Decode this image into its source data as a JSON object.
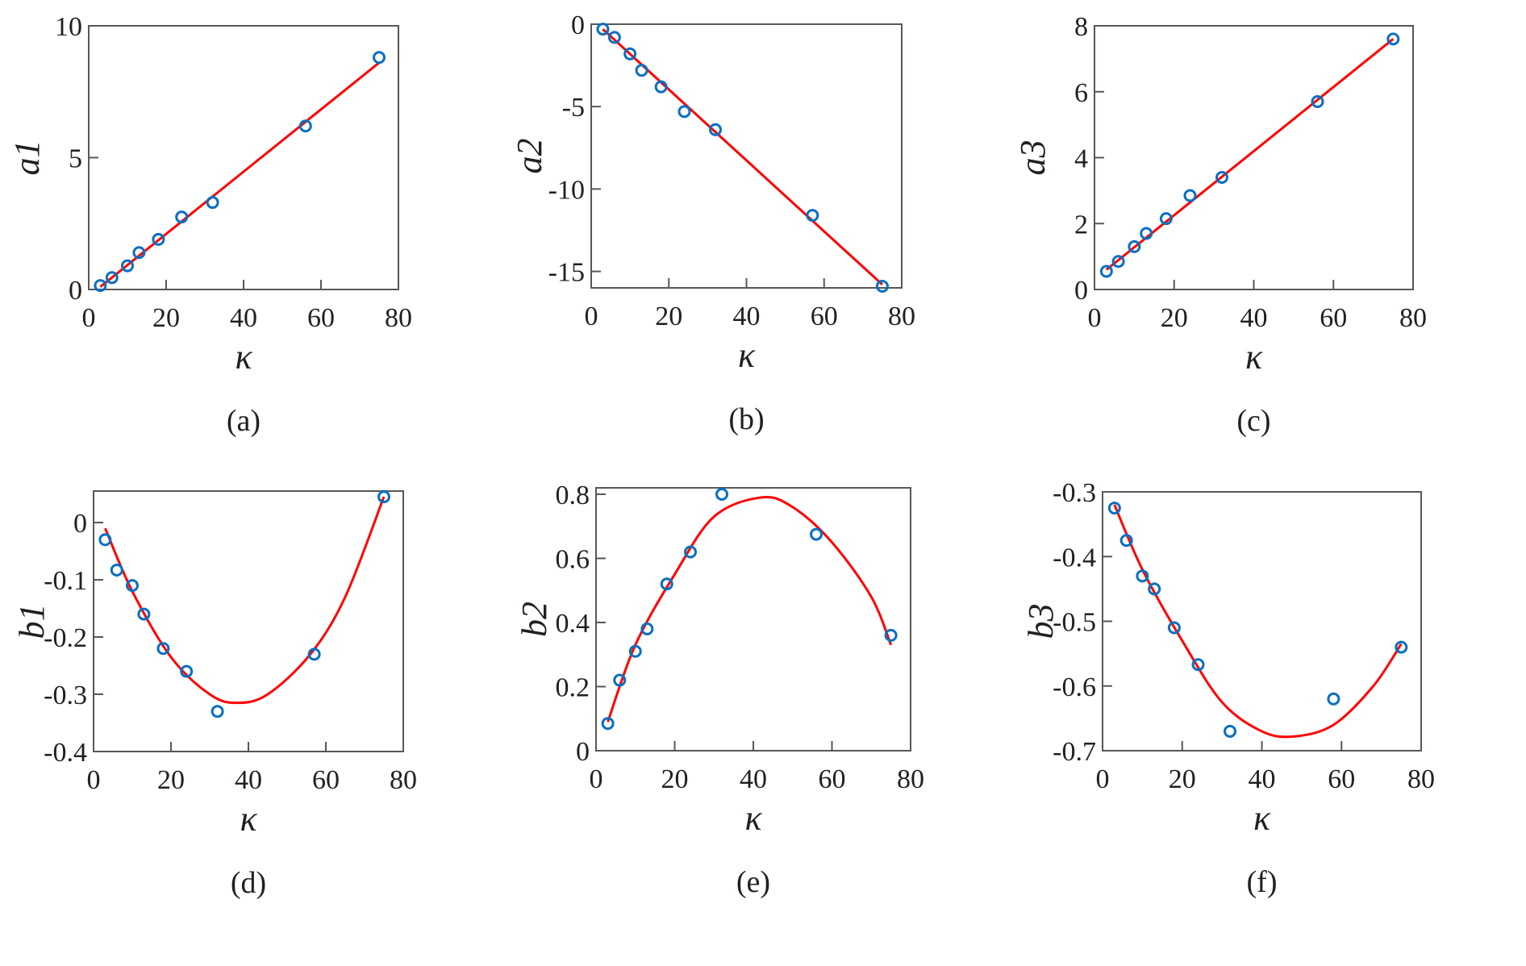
{
  "colors": {
    "points": "#0a6fc2",
    "fit": "#ff0000",
    "frame": "#5a5656"
  },
  "chart_data": [
    {
      "type": "scatter",
      "panel": "(a)",
      "xlabel": "κ",
      "ylabel": "a1",
      "xlim": [
        0,
        80
      ],
      "ylim": [
        0,
        10
      ],
      "xticks": [
        0,
        20,
        40,
        60,
        80
      ],
      "yticks": [
        0,
        5,
        10
      ],
      "x": [
        3,
        6,
        10,
        13,
        18,
        24,
        32,
        56,
        75
      ],
      "y": [
        0.15,
        0.45,
        0.9,
        1.4,
        1.9,
        2.75,
        3.3,
        6.2,
        8.8
      ],
      "fit": {
        "x": [
          3,
          75
        ],
        "y": [
          0.1,
          8.6
        ]
      }
    },
    {
      "type": "scatter",
      "panel": "(b)",
      "xlabel": "κ",
      "ylabel": "a2",
      "xlim": [
        0,
        80
      ],
      "ylim": [
        -16,
        0
      ],
      "xticks": [
        0,
        20,
        40,
        60,
        80
      ],
      "yticks": [
        0,
        -5,
        -10,
        -15
      ],
      "x": [
        3,
        6,
        10,
        13,
        18,
        24,
        32,
        57,
        75
      ],
      "y": [
        -0.3,
        -0.8,
        -1.8,
        -2.8,
        -3.8,
        -5.3,
        -6.4,
        -11.6,
        -15.9
      ],
      "fit": {
        "x": [
          3,
          75
        ],
        "y": [
          -0.3,
          -15.8
        ]
      }
    },
    {
      "type": "scatter",
      "panel": "(c)",
      "xlabel": "κ",
      "ylabel": "a3",
      "xlim": [
        0,
        80
      ],
      "ylim": [
        0,
        8
      ],
      "xticks": [
        0,
        20,
        40,
        60,
        80
      ],
      "yticks": [
        0,
        2,
        4,
        6,
        8
      ],
      "x": [
        3,
        6,
        10,
        13,
        18,
        24,
        32,
        56,
        75
      ],
      "y": [
        0.55,
        0.85,
        1.3,
        1.7,
        2.15,
        2.85,
        3.4,
        5.7,
        7.6
      ],
      "fit": {
        "x": [
          3,
          75
        ],
        "y": [
          0.6,
          7.6
        ]
      }
    },
    {
      "type": "scatter",
      "panel": "(d)",
      "xlabel": "κ",
      "ylabel": "b1",
      "xlim": [
        0,
        80
      ],
      "ylim": [
        -0.4,
        0.055
      ],
      "xticks": [
        0,
        20,
        40,
        60,
        80
      ],
      "yticks": [
        0,
        -0.1,
        -0.2,
        -0.3,
        -0.4
      ],
      "x": [
        3,
        6,
        10,
        13,
        18,
        24,
        32,
        57,
        75
      ],
      "y": [
        -0.03,
        -0.083,
        -0.11,
        -0.16,
        -0.22,
        -0.26,
        -0.33,
        -0.23,
        0.045
      ],
      "fit": {
        "x": [
          3,
          10,
          20,
          30,
          37,
          45,
          56,
          65,
          75
        ],
        "y": [
          -0.01,
          -0.12,
          -0.235,
          -0.3,
          -0.315,
          -0.3,
          -0.23,
          -0.13,
          0.045
        ]
      }
    },
    {
      "type": "scatter",
      "panel": "(e)",
      "xlabel": "κ",
      "ylabel": "b2",
      "xlim": [
        0,
        80
      ],
      "ylim": [
        0,
        0.82
      ],
      "xticks": [
        0,
        20,
        40,
        60,
        80
      ],
      "yticks": [
        0,
        0.2,
        0.4,
        0.6,
        0.8
      ],
      "x": [
        3,
        6,
        10,
        13,
        18,
        24,
        32,
        56,
        75
      ],
      "y": [
        0.085,
        0.22,
        0.31,
        0.38,
        0.52,
        0.62,
        0.8,
        0.675,
        0.36
      ],
      "fit": {
        "x": [
          3,
          10,
          20,
          30,
          42,
          50,
          60,
          70,
          75
        ],
        "y": [
          0.09,
          0.33,
          0.55,
          0.73,
          0.79,
          0.76,
          0.65,
          0.48,
          0.33
        ]
      }
    },
    {
      "type": "scatter",
      "panel": "(f)",
      "xlabel": "κ",
      "ylabel": "b3",
      "xlim": [
        0,
        80
      ],
      "ylim": [
        -0.7,
        -0.3
      ],
      "xticks": [
        0,
        20,
        40,
        60,
        80
      ],
      "yticks": [
        -0.3,
        -0.4,
        -0.5,
        -0.6,
        -0.7
      ],
      "x": [
        3,
        6,
        10,
        13,
        18,
        24,
        32,
        58,
        75
      ],
      "y": [
        -0.325,
        -0.375,
        -0.43,
        -0.45,
        -0.51,
        -0.567,
        -0.67,
        -0.62,
        -0.54
      ],
      "fit": {
        "x": [
          3,
          10,
          20,
          30,
          40,
          48,
          58,
          68,
          75
        ],
        "y": [
          -0.32,
          -0.42,
          -0.53,
          -0.625,
          -0.67,
          -0.678,
          -0.66,
          -0.6,
          -0.535
        ]
      }
    }
  ]
}
